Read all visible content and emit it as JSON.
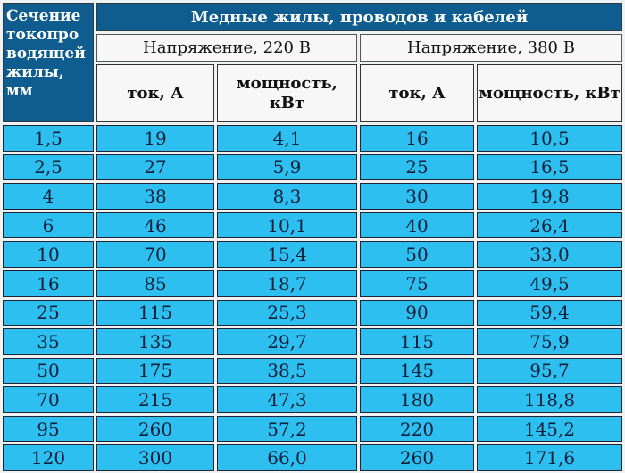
{
  "header": {
    "section_label": "Сечение токопро водящей жилы, мм",
    "title": "Медные жилы, проводов и кабелей",
    "voltage_220": "Напряжение, 220 В",
    "voltage_380": "Напряжение, 380 В",
    "current_220": "ток, А",
    "power_220": "мощность, кВт",
    "current_380": "ток, А",
    "power_380": "мощность, кВт"
  },
  "rows": [
    [
      "1,5",
      "19",
      "4,1",
      "16",
      "10,5"
    ],
    [
      "2,5",
      "27",
      "5,9",
      "25",
      "16,5"
    ],
    [
      "4",
      "38",
      "8,3",
      "30",
      "19,8"
    ],
    [
      "6",
      "46",
      "10,1",
      "40",
      "26,4"
    ],
    [
      "10",
      "70",
      "15,4",
      "50",
      "33,0"
    ],
    [
      "16",
      "85",
      "18,7",
      "75",
      "49,5"
    ],
    [
      "25",
      "115",
      "25,3",
      "90",
      "59,4"
    ],
    [
      "35",
      "135",
      "29,7",
      "115",
      "75,9"
    ],
    [
      "50",
      "175",
      "38,5",
      "145",
      "95,7"
    ],
    [
      "70",
      "215",
      "47,3",
      "180",
      "118,8"
    ],
    [
      "95",
      "260",
      "57,2",
      "220",
      "145,2"
    ],
    [
      "120",
      "300",
      "66,0",
      "260",
      "171,6"
    ]
  ],
  "colors": {
    "header": "#0e5d8e",
    "cell": "#2dbff0"
  }
}
